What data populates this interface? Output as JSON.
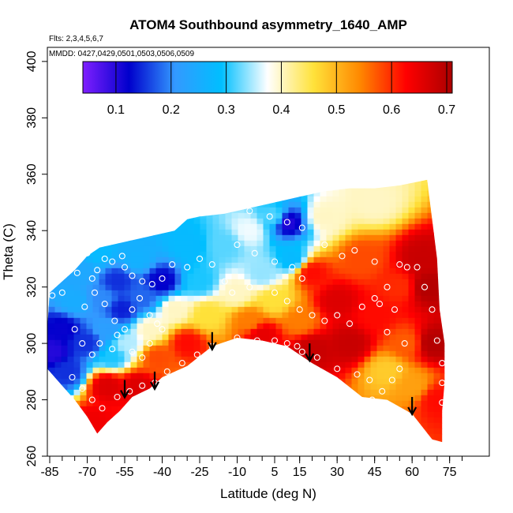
{
  "chart_data": {
    "type": "heatmap",
    "title": "ATOM4 Southbound asymmetry_1640_AMP",
    "subtitle_flights": "Flts: 2,3,4,5,6,7",
    "subtitle_dates": "MMDD: 0427,0429,0501,0503,0506,0509",
    "xlabel": "Latitude (deg N)",
    "ylabel": "Theta (C)",
    "xlim": [
      -87,
      83
    ],
    "ylim": [
      260,
      405
    ],
    "x_ticks": [
      -85,
      -70,
      -55,
      -40,
      -25,
      -10,
      5,
      15,
      30,
      45,
      60,
      75
    ],
    "x_tick_labels": [
      "-85",
      "-70",
      "-55",
      "-40",
      "-25",
      "-10",
      "5",
      "15",
      "30",
      "45",
      "60",
      "75"
    ],
    "y_ticks": [
      260,
      280,
      300,
      320,
      340,
      360,
      380,
      400
    ],
    "y_tick_labels": [
      "260",
      "280",
      "300",
      "320",
      "340",
      "360",
      "380",
      "400"
    ],
    "colorbar": {
      "range": [
        0.04,
        0.71
      ],
      "ticks": [
        0.1,
        0.2,
        0.3,
        0.4,
        0.5,
        0.6,
        0.7
      ],
      "tick_labels": [
        "0.1",
        "0.2",
        "0.3",
        "0.4",
        "0.5",
        "0.6",
        "0.7"
      ],
      "colors": [
        "#7f1fff",
        "#0000cc",
        "#3399ff",
        "#00bfff",
        "#ffffff",
        "#ffe23a",
        "#ff8800",
        "#ff0000",
        "#aa0000"
      ]
    },
    "boundary_top": [
      [
        -85,
        318
      ],
      [
        -80,
        322
      ],
      [
        -75,
        326
      ],
      [
        -70,
        331
      ],
      [
        -65,
        334
      ],
      [
        -55,
        336
      ],
      [
        -45,
        338
      ],
      [
        -35,
        340
      ],
      [
        -30,
        344
      ],
      [
        -25,
        345
      ],
      [
        -15,
        346
      ],
      [
        -5,
        348
      ],
      [
        5,
        350
      ],
      [
        15,
        352
      ],
      [
        25,
        354
      ],
      [
        35,
        355
      ],
      [
        45,
        355
      ],
      [
        55,
        356
      ],
      [
        66,
        358
      ]
    ],
    "boundary_bottom": [
      [
        66,
        358
      ],
      [
        70,
        330
      ],
      [
        71,
        312
      ],
      [
        73,
        300
      ],
      [
        73,
        286
      ],
      [
        72,
        276
      ],
      [
        72,
        265
      ],
      [
        68,
        266
      ],
      [
        60,
        275
      ],
      [
        50,
        280
      ],
      [
        40,
        281
      ],
      [
        30,
        288
      ],
      [
        20,
        293
      ],
      [
        10,
        299
      ],
      [
        0,
        301
      ],
      [
        -10,
        302
      ],
      [
        -20,
        299
      ],
      [
        -30,
        292
      ],
      [
        -40,
        288
      ],
      [
        -45,
        284
      ],
      [
        -52,
        281
      ],
      [
        -57,
        276
      ],
      [
        -62,
        272
      ],
      [
        -66,
        268
      ],
      [
        -70,
        274
      ],
      [
        -75,
        280
      ],
      [
        -80,
        285
      ],
      [
        -85,
        290
      ],
      [
        -87,
        292
      ]
    ],
    "field_points": [
      {
        "lat": -84,
        "theta": 297,
        "value": 0.1
      },
      {
        "lat": -80,
        "theta": 305,
        "value": 0.12
      },
      {
        "lat": -78,
        "theta": 290,
        "value": 0.15
      },
      {
        "lat": -75,
        "theta": 315,
        "value": 0.25
      },
      {
        "lat": -72,
        "theta": 326,
        "value": 0.24
      },
      {
        "lat": -70,
        "theta": 300,
        "value": 0.15
      },
      {
        "lat": -66,
        "theta": 332,
        "value": 0.28
      },
      {
        "lat": -64,
        "theta": 316,
        "value": 0.2
      },
      {
        "lat": -62,
        "theta": 305,
        "value": 0.22
      },
      {
        "lat": -60,
        "theta": 295,
        "value": 0.3
      },
      {
        "lat": -58,
        "theta": 322,
        "value": 0.15
      },
      {
        "lat": -56,
        "theta": 312,
        "value": 0.14
      },
      {
        "lat": -54,
        "theta": 300,
        "value": 0.35
      },
      {
        "lat": -50,
        "theta": 330,
        "value": 0.26
      },
      {
        "lat": -48,
        "theta": 316,
        "value": 0.18
      },
      {
        "lat": -45,
        "theta": 305,
        "value": 0.4
      },
      {
        "lat": -42,
        "theta": 295,
        "value": 0.58
      },
      {
        "lat": -40,
        "theta": 322,
        "value": 0.12
      },
      {
        "lat": -35,
        "theta": 312,
        "value": 0.4
      },
      {
        "lat": -30,
        "theta": 335,
        "value": 0.28
      },
      {
        "lat": -25,
        "theta": 322,
        "value": 0.3
      },
      {
        "lat": -22,
        "theta": 310,
        "value": 0.46
      },
      {
        "lat": -15,
        "theta": 335,
        "value": 0.32
      },
      {
        "lat": -10,
        "theta": 318,
        "value": 0.4
      },
      {
        "lat": -5,
        "theta": 340,
        "value": 0.37
      },
      {
        "lat": 0,
        "theta": 325,
        "value": 0.34
      },
      {
        "lat": 5,
        "theta": 345,
        "value": 0.32
      },
      {
        "lat": 5,
        "theta": 315,
        "value": 0.46
      },
      {
        "lat": 10,
        "theta": 343,
        "value": 0.1
      },
      {
        "lat": 12,
        "theta": 330,
        "value": 0.28
      },
      {
        "lat": 15,
        "theta": 308,
        "value": 0.55
      },
      {
        "lat": 20,
        "theta": 325,
        "value": 0.62
      },
      {
        "lat": 25,
        "theta": 345,
        "value": 0.4
      },
      {
        "lat": 30,
        "theta": 315,
        "value": 0.66
      },
      {
        "lat": 35,
        "theta": 300,
        "value": 0.68
      },
      {
        "lat": 40,
        "theta": 330,
        "value": 0.58
      },
      {
        "lat": 45,
        "theta": 350,
        "value": 0.4
      },
      {
        "lat": 45,
        "theta": 310,
        "value": 0.62
      },
      {
        "lat": 50,
        "theta": 290,
        "value": 0.48
      },
      {
        "lat": 55,
        "theta": 320,
        "value": 0.6
      },
      {
        "lat": 58,
        "theta": 300,
        "value": 0.57
      },
      {
        "lat": 60,
        "theta": 285,
        "value": 0.52
      },
      {
        "lat": 64,
        "theta": 330,
        "value": 0.68
      },
      {
        "lat": 66,
        "theta": 320,
        "value": 0.7
      },
      {
        "lat": 68,
        "theta": 300,
        "value": 0.7
      },
      {
        "lat": 70,
        "theta": 280,
        "value": 0.62
      },
      {
        "lat": -62,
        "theta": 285,
        "value": 0.66
      },
      {
        "lat": -68,
        "theta": 272,
        "value": 0.64
      },
      {
        "lat": -30,
        "theta": 300,
        "value": 0.62
      },
      {
        "lat": 0,
        "theta": 303,
        "value": 0.65
      },
      {
        "lat": -50,
        "theta": 285,
        "value": 0.66
      },
      {
        "lat": 20,
        "theta": 298,
        "value": 0.68
      },
      {
        "lat": -5,
        "theta": 308,
        "value": 0.55
      }
    ],
    "sample_points": [
      [
        -84,
        317
      ],
      [
        -80,
        318
      ],
      [
        -74,
        325
      ],
      [
        -72,
        331
      ],
      [
        -70,
        332
      ],
      [
        -68,
        323
      ],
      [
        -66,
        326
      ],
      [
        -63,
        330
      ],
      [
        -60,
        329
      ],
      [
        -56,
        331
      ],
      [
        -55,
        327
      ],
      [
        -52,
        324
      ],
      [
        -48,
        322
      ],
      [
        -44,
        321
      ],
      [
        -40,
        323
      ],
      [
        -36,
        328
      ],
      [
        -30,
        327
      ],
      [
        -25,
        330
      ],
      [
        -20,
        328
      ],
      [
        -71,
        313
      ],
      [
        -67,
        318
      ],
      [
        -63,
        314
      ],
      [
        -59,
        308
      ],
      [
        -55,
        305
      ],
      [
        -52,
        312
      ],
      [
        -49,
        316
      ],
      [
        -45,
        310
      ],
      [
        -42,
        307
      ],
      [
        -75,
        305
      ],
      [
        -72,
        300
      ],
      [
        -68,
        296
      ],
      [
        -65,
        300
      ],
      [
        -60,
        298
      ],
      [
        -58,
        303
      ],
      [
        -52,
        297
      ],
      [
        -48,
        295
      ],
      [
        -45,
        300
      ],
      [
        -40,
        305
      ],
      [
        -76,
        288
      ],
      [
        -72,
        284
      ],
      [
        -68,
        280
      ],
      [
        -64,
        277
      ],
      [
        -58,
        281
      ],
      [
        -53,
        283
      ],
      [
        -48,
        285
      ],
      [
        -43,
        286
      ],
      [
        -38,
        290
      ],
      [
        -32,
        293
      ],
      [
        -26,
        296
      ],
      [
        -20,
        299
      ],
      [
        -10,
        302
      ],
      [
        -2,
        301
      ],
      [
        5,
        301
      ],
      [
        10,
        300
      ],
      [
        14,
        299
      ],
      [
        16,
        297
      ],
      [
        22,
        295
      ],
      [
        30,
        291
      ],
      [
        38,
        289
      ],
      [
        43,
        287
      ],
      [
        -5,
        347
      ],
      [
        3,
        345
      ],
      [
        10,
        343
      ],
      [
        16,
        341
      ],
      [
        -10,
        335
      ],
      [
        -3,
        332
      ],
      [
        5,
        329
      ],
      [
        12,
        327
      ],
      [
        16,
        323
      ],
      [
        -15,
        322
      ],
      [
        -12,
        318
      ],
      [
        -5,
        320
      ],
      [
        5,
        318
      ],
      [
        10,
        315
      ],
      [
        15,
        312
      ],
      [
        20,
        310
      ],
      [
        25,
        308
      ],
      [
        30,
        310
      ],
      [
        35,
        307
      ],
      [
        40,
        313
      ],
      [
        45,
        316
      ],
      [
        50,
        320
      ],
      [
        55,
        328
      ],
      [
        58,
        327
      ],
      [
        62,
        327
      ],
      [
        45,
        329
      ],
      [
        37,
        333
      ],
      [
        32,
        331
      ],
      [
        25,
        335
      ],
      [
        65,
        320
      ],
      [
        68,
        312
      ],
      [
        70,
        301
      ],
      [
        72,
        293
      ],
      [
        72,
        286
      ],
      [
        72,
        279
      ],
      [
        55,
        291
      ],
      [
        52,
        287
      ],
      [
        48,
        283
      ],
      [
        44,
        280
      ],
      [
        57,
        300
      ],
      [
        50,
        304
      ],
      [
        47,
        314
      ],
      [
        53,
        312
      ]
    ],
    "arrows": [
      {
        "lat": -55,
        "theta": 287
      },
      {
        "lat": -43,
        "theta": 290
      },
      {
        "lat": -20,
        "theta": 304
      },
      {
        "lat": 19,
        "theta": 300
      },
      {
        "lat": 60,
        "theta": 281
      }
    ]
  }
}
